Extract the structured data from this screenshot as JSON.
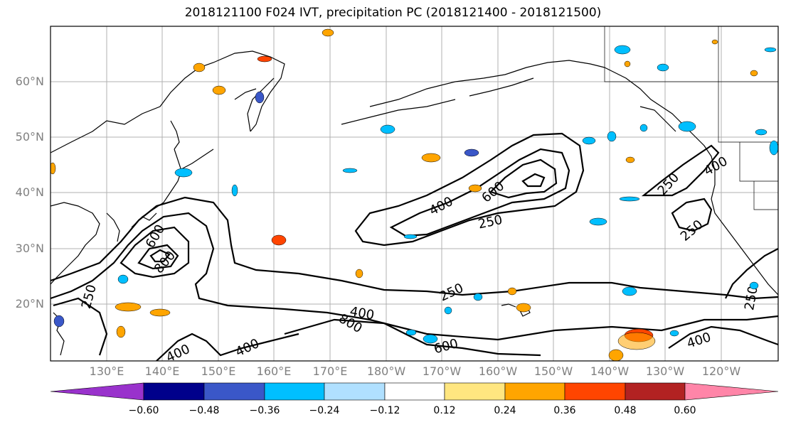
{
  "title": "2018121100 F024 IVT, precipitation PC (2018121400 - 2018121500)",
  "lat_labels": [
    "60°N",
    "50°N",
    "40°N",
    "30°N",
    "20°N"
  ],
  "lon_labels": [
    "130°E",
    "140°E",
    "150°E",
    "160°E",
    "170°E",
    "180°W",
    "170°W",
    "160°W",
    "150°W",
    "140°W",
    "130°W",
    "120°W"
  ],
  "contour_labels": [
    "400",
    "600",
    "250",
    "600",
    "800",
    "250",
    "400",
    "400",
    "800",
    "600",
    "250",
    "400",
    "250",
    "250",
    "400",
    "250",
    "400"
  ],
  "colorbar": {
    "ticks": [
      "−0.60",
      "−0.48",
      "−0.36",
      "−0.24",
      "−0.12",
      "0.12",
      "0.24",
      "0.36",
      "0.48",
      "0.60"
    ],
    "colors": [
      "#9932cc",
      "#00008b",
      "#3a57c8",
      "#00bfff",
      "#b0e0ff",
      "#ffffff",
      "#ffe680",
      "#ffa500",
      "#ff4500",
      "#b22222",
      "#ff85a8"
    ]
  }
}
